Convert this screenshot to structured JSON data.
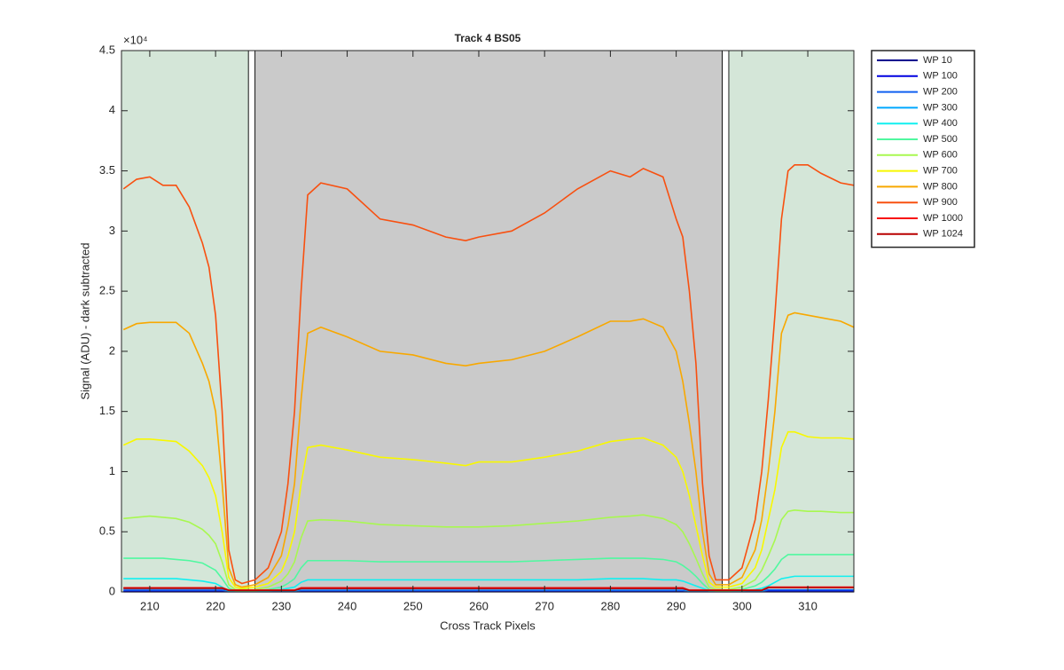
{
  "chart_data": {
    "type": "line",
    "title": "Track 4  BS05",
    "xlabel": "Cross Track Pixels",
    "ylabel": "Signal (ADU) - dark subtracted",
    "y_exponent_label": "×10⁴",
    "xlim": [
      205.7,
      317
    ],
    "ylim": [
      0,
      4.5
    ],
    "xticks": [
      210,
      220,
      230,
      240,
      250,
      260,
      270,
      280,
      290,
      300,
      310
    ],
    "yticks": [
      0,
      0.5,
      1,
      1.5,
      2,
      2.5,
      3,
      3.5,
      4,
      4.5
    ],
    "legend": "northeastoutside",
    "regions": [
      {
        "x0": 205.7,
        "x1": 225,
        "color": "#d4e6d8"
      },
      {
        "x0": 225,
        "x1": 226,
        "color": "#ffffff"
      },
      {
        "x0": 226,
        "x1": 297,
        "color": "#cacaca"
      },
      {
        "x0": 297,
        "x1": 298,
        "color": "#ffffff"
      },
      {
        "x0": 298,
        "x1": 317,
        "color": "#d4e6d8"
      }
    ],
    "x": [
      206,
      208,
      210,
      212,
      214,
      216,
      218,
      219,
      220,
      221,
      222,
      223,
      224,
      226,
      228,
      230,
      231,
      232,
      233,
      234,
      236,
      240,
      245,
      250,
      255,
      258,
      260,
      265,
      270,
      275,
      280,
      283,
      285,
      288,
      290,
      291,
      292,
      293,
      294,
      295,
      296,
      298,
      300,
      302,
      303,
      304,
      305,
      306,
      307,
      308,
      310,
      312,
      315,
      317
    ],
    "series": [
      {
        "name": "WP 10",
        "color": "#00008f",
        "values": [
          0.001,
          0.001,
          0.001,
          0.001,
          0.001,
          0.001,
          0.001,
          0.001,
          0.001,
          0.001,
          0.001,
          0.001,
          0.001,
          0.001,
          0.001,
          0.001,
          0.001,
          0.001,
          0.001,
          0.001,
          0.001,
          0.001,
          0.001,
          0.001,
          0.001,
          0.001,
          0.001,
          0.001,
          0.001,
          0.001,
          0.001,
          0.001,
          0.001,
          0.001,
          0.001,
          0.001,
          0.001,
          0.001,
          0.001,
          0.001,
          0.001,
          0.001,
          0.001,
          0.001,
          0.001,
          0.001,
          0.001,
          0.001,
          0.001,
          0.001,
          0.001,
          0.001,
          0.001,
          0.001
        ]
      },
      {
        "name": "WP 100",
        "color": "#0000e0",
        "values": [
          0.006,
          0.006,
          0.006,
          0.006,
          0.006,
          0.006,
          0.006,
          0.006,
          0.006,
          0.006,
          0.002,
          0.002,
          0.002,
          0.002,
          0.002,
          0.002,
          0.002,
          0.002,
          0.005,
          0.005,
          0.005,
          0.005,
          0.005,
          0.005,
          0.005,
          0.005,
          0.005,
          0.005,
          0.005,
          0.005,
          0.005,
          0.005,
          0.005,
          0.005,
          0.005,
          0.005,
          0.002,
          0.002,
          0.002,
          0.002,
          0.002,
          0.002,
          0.002,
          0.002,
          0.002,
          0.007,
          0.007,
          0.007,
          0.007,
          0.007,
          0.007,
          0.007,
          0.007,
          0.007
        ]
      },
      {
        "name": "WP 200",
        "color": "#1060f0",
        "values": [
          0.015,
          0.015,
          0.015,
          0.015,
          0.015,
          0.015,
          0.015,
          0.015,
          0.015,
          0.015,
          0.003,
          0.003,
          0.003,
          0.003,
          0.003,
          0.003,
          0.003,
          0.003,
          0.012,
          0.012,
          0.012,
          0.012,
          0.012,
          0.012,
          0.012,
          0.012,
          0.012,
          0.012,
          0.012,
          0.012,
          0.012,
          0.012,
          0.012,
          0.012,
          0.012,
          0.012,
          0.003,
          0.003,
          0.003,
          0.003,
          0.003,
          0.003,
          0.003,
          0.003,
          0.003,
          0.017,
          0.017,
          0.017,
          0.017,
          0.017,
          0.017,
          0.017,
          0.017,
          0.017
        ]
      },
      {
        "name": "WP 300",
        "color": "#00a8ff",
        "values": [
          0.03,
          0.03,
          0.03,
          0.03,
          0.03,
          0.03,
          0.03,
          0.03,
          0.03,
          0.03,
          0.005,
          0.005,
          0.005,
          0.005,
          0.005,
          0.005,
          0.005,
          0.005,
          0.025,
          0.025,
          0.025,
          0.025,
          0.025,
          0.025,
          0.025,
          0.025,
          0.025,
          0.025,
          0.025,
          0.025,
          0.025,
          0.025,
          0.025,
          0.025,
          0.025,
          0.025,
          0.005,
          0.005,
          0.005,
          0.005,
          0.005,
          0.005,
          0.005,
          0.005,
          0.005,
          0.035,
          0.035,
          0.035,
          0.035,
          0.035,
          0.035,
          0.035,
          0.035,
          0.035
        ]
      },
      {
        "name": "WP 400",
        "color": "#10f0f0",
        "values": [
          0.11,
          0.11,
          0.11,
          0.11,
          0.11,
          0.1,
          0.09,
          0.08,
          0.07,
          0.04,
          0.01,
          0.01,
          0.01,
          0.01,
          0.01,
          0.02,
          0.03,
          0.04,
          0.08,
          0.1,
          0.1,
          0.1,
          0.1,
          0.1,
          0.1,
          0.1,
          0.1,
          0.1,
          0.1,
          0.1,
          0.11,
          0.11,
          0.11,
          0.1,
          0.1,
          0.09,
          0.07,
          0.05,
          0.03,
          0.01,
          0.01,
          0.01,
          0.01,
          0.02,
          0.03,
          0.05,
          0.08,
          0.11,
          0.12,
          0.13,
          0.13,
          0.13,
          0.13,
          0.13
        ]
      },
      {
        "name": "WP 500",
        "color": "#50f8a0",
        "values": [
          0.28,
          0.28,
          0.28,
          0.28,
          0.27,
          0.26,
          0.24,
          0.21,
          0.18,
          0.11,
          0.03,
          0.01,
          0.01,
          0.01,
          0.02,
          0.04,
          0.07,
          0.11,
          0.2,
          0.26,
          0.26,
          0.26,
          0.25,
          0.25,
          0.25,
          0.25,
          0.25,
          0.25,
          0.26,
          0.27,
          0.28,
          0.28,
          0.28,
          0.27,
          0.25,
          0.22,
          0.18,
          0.13,
          0.07,
          0.02,
          0.01,
          0.01,
          0.02,
          0.05,
          0.08,
          0.13,
          0.19,
          0.27,
          0.31,
          0.31,
          0.31,
          0.31,
          0.31,
          0.31
        ]
      },
      {
        "name": "WP 600",
        "color": "#a8f850",
        "values": [
          0.61,
          0.62,
          0.63,
          0.62,
          0.61,
          0.58,
          0.52,
          0.47,
          0.4,
          0.25,
          0.06,
          0.02,
          0.02,
          0.02,
          0.04,
          0.09,
          0.15,
          0.25,
          0.45,
          0.59,
          0.6,
          0.59,
          0.56,
          0.55,
          0.54,
          0.54,
          0.54,
          0.55,
          0.57,
          0.59,
          0.62,
          0.63,
          0.64,
          0.61,
          0.56,
          0.5,
          0.4,
          0.28,
          0.15,
          0.04,
          0.02,
          0.02,
          0.04,
          0.1,
          0.18,
          0.3,
          0.43,
          0.6,
          0.67,
          0.68,
          0.67,
          0.67,
          0.66,
          0.66
        ]
      },
      {
        "name": "WP 700",
        "color": "#f8f800",
        "values": [
          1.22,
          1.27,
          1.27,
          1.26,
          1.25,
          1.17,
          1.05,
          0.95,
          0.8,
          0.5,
          0.12,
          0.04,
          0.03,
          0.04,
          0.07,
          0.17,
          0.3,
          0.5,
          0.9,
          1.2,
          1.22,
          1.18,
          1.12,
          1.1,
          1.07,
          1.05,
          1.08,
          1.08,
          1.12,
          1.17,
          1.25,
          1.27,
          1.28,
          1.22,
          1.12,
          1.0,
          0.8,
          0.55,
          0.3,
          0.08,
          0.04,
          0.04,
          0.07,
          0.2,
          0.35,
          0.6,
          0.85,
          1.2,
          1.33,
          1.33,
          1.29,
          1.28,
          1.28,
          1.27
        ]
      },
      {
        "name": "WP 800",
        "color": "#f8a800",
        "values": [
          2.18,
          2.23,
          2.24,
          2.24,
          2.24,
          2.15,
          1.9,
          1.75,
          1.5,
          0.9,
          0.2,
          0.06,
          0.04,
          0.06,
          0.12,
          0.3,
          0.55,
          0.9,
          1.6,
          2.15,
          2.2,
          2.12,
          2.0,
          1.97,
          1.9,
          1.88,
          1.9,
          1.93,
          2.0,
          2.12,
          2.25,
          2.25,
          2.27,
          2.2,
          2.0,
          1.75,
          1.4,
          1.0,
          0.5,
          0.15,
          0.06,
          0.06,
          0.12,
          0.35,
          0.6,
          1.0,
          1.5,
          2.15,
          2.3,
          2.32,
          2.3,
          2.28,
          2.25,
          2.2
        ]
      },
      {
        "name": "WP 900",
        "color": "#f85010",
        "values": [
          3.35,
          3.43,
          3.45,
          3.38,
          3.38,
          3.2,
          2.9,
          2.7,
          2.3,
          1.5,
          0.35,
          0.1,
          0.07,
          0.1,
          0.2,
          0.5,
          0.9,
          1.5,
          2.5,
          3.3,
          3.4,
          3.35,
          3.1,
          3.05,
          2.95,
          2.92,
          2.95,
          3.0,
          3.15,
          3.35,
          3.5,
          3.45,
          3.52,
          3.45,
          3.1,
          2.95,
          2.5,
          1.9,
          0.9,
          0.3,
          0.1,
          0.1,
          0.2,
          0.6,
          1.0,
          1.6,
          2.3,
          3.1,
          3.5,
          3.55,
          3.55,
          3.48,
          3.4,
          3.38
        ]
      },
      {
        "name": "WP 1000",
        "color": "#f81010",
        "values": [
          0.035,
          0.035,
          0.035,
          0.035,
          0.035,
          0.035,
          0.035,
          0.035,
          0.035,
          0.035,
          0.015,
          0.015,
          0.015,
          0.015,
          0.015,
          0.015,
          0.015,
          0.015,
          0.035,
          0.035,
          0.035,
          0.035,
          0.035,
          0.035,
          0.035,
          0.035,
          0.035,
          0.035,
          0.035,
          0.035,
          0.035,
          0.035,
          0.035,
          0.035,
          0.035,
          0.035,
          0.015,
          0.015,
          0.015,
          0.015,
          0.015,
          0.015,
          0.015,
          0.015,
          0.015,
          0.04,
          0.04,
          0.04,
          0.04,
          0.04,
          0.04,
          0.04,
          0.04,
          0.04
        ]
      },
      {
        "name": "WP 1024",
        "color": "#b80000",
        "values": [
          0.03,
          0.03,
          0.03,
          0.03,
          0.03,
          0.03,
          0.03,
          0.03,
          0.03,
          0.03,
          0.012,
          0.012,
          0.012,
          0.012,
          0.012,
          0.012,
          0.012,
          0.012,
          0.028,
          0.028,
          0.028,
          0.028,
          0.028,
          0.028,
          0.028,
          0.028,
          0.028,
          0.028,
          0.028,
          0.028,
          0.028,
          0.028,
          0.028,
          0.028,
          0.028,
          0.028,
          0.012,
          0.012,
          0.012,
          0.012,
          0.012,
          0.012,
          0.012,
          0.012,
          0.012,
          0.035,
          0.035,
          0.035,
          0.035,
          0.035,
          0.035,
          0.035,
          0.035,
          0.035
        ]
      }
    ]
  }
}
